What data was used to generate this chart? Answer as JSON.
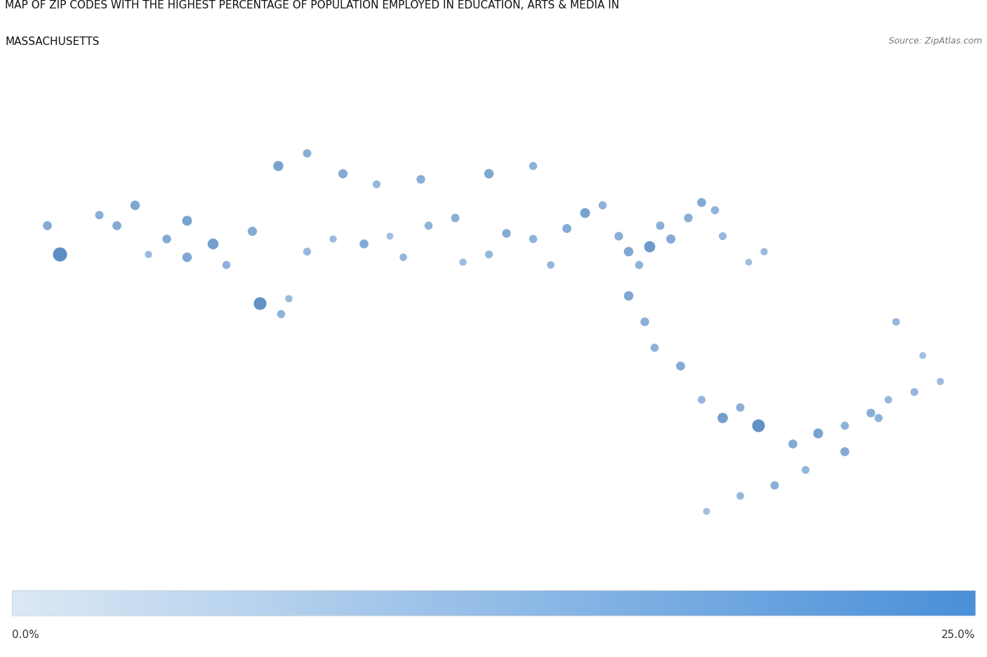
{
  "title_line1": "MAP OF ZIP CODES WITH THE HIGHEST PERCENTAGE OF POPULATION EMPLOYED IN EDUCATION, ARTS & MEDIA IN",
  "title_line2": "MASSACHUSETTS",
  "source_text": "Source: ZipAtlas.com",
  "title_fontsize": 11,
  "source_fontsize": 9,
  "colorbar_min_label": "0.0%",
  "colorbar_max_label": "25.0%",
  "colorbar_color_low": "#dce9f5",
  "colorbar_color_high": "#4a90d9",
  "bubble_low_color": "#93b8e0",
  "bubble_high_color": "#1a5fa8",
  "figsize": [
    14.06,
    9.37
  ],
  "dpi": 100,
  "map_extent_lonlat": [
    -73.6,
    -69.8,
    41.1,
    43.0
  ],
  "bubbles": [
    {
      "lon": -73.37,
      "lat": 42.31,
      "size": 220,
      "value": 0.22
    },
    {
      "lon": -73.22,
      "lat": 42.46,
      "size": 80,
      "value": 0.14
    },
    {
      "lon": -73.15,
      "lat": 42.42,
      "size": 90,
      "value": 0.15
    },
    {
      "lon": -73.08,
      "lat": 42.5,
      "size": 100,
      "value": 0.16
    },
    {
      "lon": -73.03,
      "lat": 42.31,
      "size": 60,
      "value": 0.11
    },
    {
      "lon": -72.96,
      "lat": 42.37,
      "size": 85,
      "value": 0.15
    },
    {
      "lon": -72.88,
      "lat": 42.3,
      "size": 100,
      "value": 0.16
    },
    {
      "lon": -72.78,
      "lat": 42.35,
      "size": 130,
      "value": 0.18
    },
    {
      "lon": -72.73,
      "lat": 42.27,
      "size": 75,
      "value": 0.13
    },
    {
      "lon": -72.63,
      "lat": 42.4,
      "size": 95,
      "value": 0.15
    },
    {
      "lon": -72.6,
      "lat": 42.12,
      "size": 180,
      "value": 0.21
    },
    {
      "lon": -72.52,
      "lat": 42.08,
      "size": 75,
      "value": 0.13
    },
    {
      "lon": -72.49,
      "lat": 42.14,
      "size": 60,
      "value": 0.11
    },
    {
      "lon": -72.42,
      "lat": 42.32,
      "size": 70,
      "value": 0.12
    },
    {
      "lon": -72.32,
      "lat": 42.37,
      "size": 60,
      "value": 0.11
    },
    {
      "lon": -72.2,
      "lat": 42.35,
      "size": 90,
      "value": 0.15
    },
    {
      "lon": -72.1,
      "lat": 42.38,
      "size": 55,
      "value": 0.1
    },
    {
      "lon": -72.05,
      "lat": 42.3,
      "size": 65,
      "value": 0.12
    },
    {
      "lon": -71.95,
      "lat": 42.42,
      "size": 75,
      "value": 0.13
    },
    {
      "lon": -71.85,
      "lat": 42.45,
      "size": 80,
      "value": 0.14
    },
    {
      "lon": -71.82,
      "lat": 42.28,
      "size": 60,
      "value": 0.11
    },
    {
      "lon": -71.72,
      "lat": 42.31,
      "size": 70,
      "value": 0.12
    },
    {
      "lon": -71.65,
      "lat": 42.39,
      "size": 85,
      "value": 0.15
    },
    {
      "lon": -71.55,
      "lat": 42.37,
      "size": 75,
      "value": 0.13
    },
    {
      "lon": -71.48,
      "lat": 42.27,
      "size": 65,
      "value": 0.12
    },
    {
      "lon": -71.42,
      "lat": 42.41,
      "size": 90,
      "value": 0.15
    },
    {
      "lon": -71.35,
      "lat": 42.47,
      "size": 110,
      "value": 0.17
    },
    {
      "lon": -71.28,
      "lat": 42.5,
      "size": 75,
      "value": 0.13
    },
    {
      "lon": -71.22,
      "lat": 42.38,
      "size": 85,
      "value": 0.14
    },
    {
      "lon": -71.18,
      "lat": 42.32,
      "size": 100,
      "value": 0.16
    },
    {
      "lon": -71.14,
      "lat": 42.27,
      "size": 75,
      "value": 0.13
    },
    {
      "lon": -71.1,
      "lat": 42.34,
      "size": 140,
      "value": 0.19
    },
    {
      "lon": -71.06,
      "lat": 42.42,
      "size": 80,
      "value": 0.14
    },
    {
      "lon": -71.02,
      "lat": 42.37,
      "size": 95,
      "value": 0.15
    },
    {
      "lon": -70.95,
      "lat": 42.45,
      "size": 85,
      "value": 0.14
    },
    {
      "lon": -70.9,
      "lat": 42.51,
      "size": 90,
      "value": 0.15
    },
    {
      "lon": -70.85,
      "lat": 42.48,
      "size": 75,
      "value": 0.13
    },
    {
      "lon": -70.82,
      "lat": 42.38,
      "size": 70,
      "value": 0.12
    },
    {
      "lon": -70.72,
      "lat": 42.28,
      "size": 55,
      "value": 0.1
    },
    {
      "lon": -70.66,
      "lat": 42.32,
      "size": 60,
      "value": 0.11
    },
    {
      "lon": -71.18,
      "lat": 42.15,
      "size": 100,
      "value": 0.16
    },
    {
      "lon": -71.12,
      "lat": 42.05,
      "size": 85,
      "value": 0.14
    },
    {
      "lon": -71.08,
      "lat": 41.95,
      "size": 75,
      "value": 0.13
    },
    {
      "lon": -70.98,
      "lat": 41.88,
      "size": 90,
      "value": 0.15
    },
    {
      "lon": -70.9,
      "lat": 41.75,
      "size": 70,
      "value": 0.12
    },
    {
      "lon": -70.82,
      "lat": 41.68,
      "size": 120,
      "value": 0.18
    },
    {
      "lon": -70.75,
      "lat": 41.72,
      "size": 80,
      "value": 0.14
    },
    {
      "lon": -70.68,
      "lat": 41.65,
      "size": 180,
      "value": 0.21
    },
    {
      "lon": -70.55,
      "lat": 41.58,
      "size": 90,
      "value": 0.15
    },
    {
      "lon": -70.45,
      "lat": 41.62,
      "size": 110,
      "value": 0.17
    },
    {
      "lon": -70.35,
      "lat": 41.65,
      "size": 75,
      "value": 0.13
    },
    {
      "lon": -70.25,
      "lat": 41.7,
      "size": 85,
      "value": 0.14
    },
    {
      "lon": -70.18,
      "lat": 41.75,
      "size": 65,
      "value": 0.12
    },
    {
      "lon": -70.08,
      "lat": 41.78,
      "size": 70,
      "value": 0.12
    },
    {
      "lon": -69.98,
      "lat": 41.82,
      "size": 60,
      "value": 0.11
    },
    {
      "lon": -70.05,
      "lat": 41.92,
      "size": 55,
      "value": 0.1
    },
    {
      "lon": -70.15,
      "lat": 42.05,
      "size": 65,
      "value": 0.12
    },
    {
      "lon": -70.22,
      "lat": 41.68,
      "size": 75,
      "value": 0.13
    },
    {
      "lon": -70.35,
      "lat": 41.55,
      "size": 90,
      "value": 0.15
    },
    {
      "lon": -70.5,
      "lat": 41.48,
      "size": 70,
      "value": 0.12
    },
    {
      "lon": -70.62,
      "lat": 41.42,
      "size": 80,
      "value": 0.14
    },
    {
      "lon": -70.75,
      "lat": 41.38,
      "size": 65,
      "value": 0.12
    },
    {
      "lon": -70.88,
      "lat": 41.32,
      "size": 55,
      "value": 0.1
    },
    {
      "lon": -72.53,
      "lat": 42.65,
      "size": 115,
      "value": 0.17
    },
    {
      "lon": -72.42,
      "lat": 42.7,
      "size": 80,
      "value": 0.14
    },
    {
      "lon": -72.28,
      "lat": 42.62,
      "size": 95,
      "value": 0.15
    },
    {
      "lon": -72.15,
      "lat": 42.58,
      "size": 70,
      "value": 0.12
    },
    {
      "lon": -71.98,
      "lat": 42.6,
      "size": 85,
      "value": 0.14
    },
    {
      "lon": -71.72,
      "lat": 42.62,
      "size": 100,
      "value": 0.16
    },
    {
      "lon": -71.55,
      "lat": 42.65,
      "size": 75,
      "value": 0.13
    },
    {
      "lon": -73.42,
      "lat": 42.42,
      "size": 90,
      "value": 0.15
    },
    {
      "lon": -72.88,
      "lat": 42.44,
      "size": 110,
      "value": 0.17
    }
  ]
}
